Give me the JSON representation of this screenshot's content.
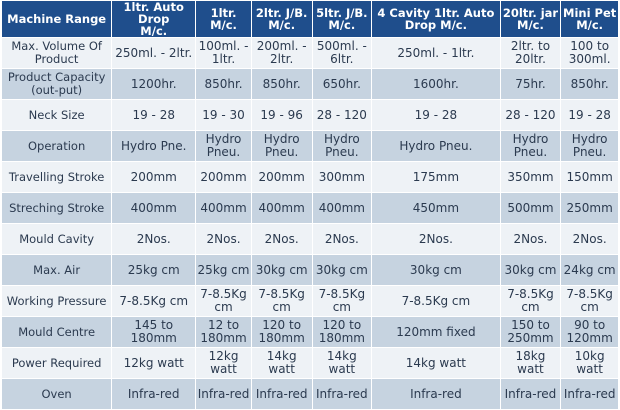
{
  "table": {
    "headers": [
      "Machine Range",
      "1ltr. Auto Drop\nM/c.",
      "1ltr. M/c.",
      "2ltr. J/B.\nM/c.",
      "5ltr. J/B.\nM/c.",
      "4 Cavity 1ltr. Auto\nDrop M/c.",
      "20ltr. jar\nM/c.",
      "Mini Pet\nM/c."
    ],
    "rows": [
      [
        "Max. Volume Of\nProduct",
        "250ml. - 2ltr.",
        "100ml. -\n1ltr.",
        "200ml. -\n2ltr.",
        "500ml. -\n6ltr.",
        "250ml. - 1ltr.",
        "2ltr. to\n20ltr.",
        "100 to\n300ml."
      ],
      [
        "Product Capacity\n(out-put)",
        "1200hr.",
        "850hr.",
        "850hr.",
        "650hr.",
        "1600hr.",
        "75hr.",
        "850hr."
      ],
      [
        "Neck Size",
        "19 - 28",
        "19 - 30",
        "19 - 96",
        "28 - 120",
        "19 - 28",
        "28 - 120",
        "19 - 28"
      ],
      [
        "Operation",
        "Hydro Pne.",
        "Hydro\nPneu.",
        "Hydro\nPneu.",
        "Hydro\nPneu.",
        "Hydro Pneu.",
        "Hydro\nPneu.",
        "Hydro\nPneu."
      ],
      [
        "Travelling Stroke",
        "200mm",
        "200mm",
        "200mm",
        "300mm",
        "175mm",
        "350mm",
        "150mm"
      ],
      [
        "Streching Stroke",
        "400mm",
        "400mm",
        "400mm",
        "400mm",
        "450mm",
        "500mm",
        "250mm"
      ],
      [
        "Mould Cavity",
        "2Nos.",
        "2Nos.",
        "2Nos.",
        "2Nos.",
        "2Nos.",
        "2Nos.",
        "2Nos."
      ],
      [
        "Max. Air",
        "25kg cm",
        "25kg cm",
        "30kg cm",
        "30kg cm",
        "30kg cm",
        "30kg cm",
        "24kg cm"
      ],
      [
        "Working Pressure",
        "7-8.5Kg cm",
        "7-8.5Kg\ncm",
        "7-8.5Kg cm",
        "7-8.5Kg cm",
        "7-8.5Kg cm",
        "7-8.5Kg cm",
        "7-8.5Kg\ncm"
      ],
      [
        "Mould Centre",
        "145 to 180mm",
        "12 to\n180mm",
        "120 to\n180mm",
        "120 to\n180mm",
        "120mm fixed",
        "150 to\n250mm",
        "90 to\n120mm"
      ],
      [
        "Power Required",
        "12kg watt",
        "12kg watt",
        "14kg watt",
        "14kg watt",
        "14kg watt",
        "18kg watt",
        "10kg watt"
      ],
      [
        "Oven",
        "Infra-red",
        "Infra-red",
        "Infra-red",
        "Infra-red",
        "Infra-red",
        "Infra-red",
        "Infra-red"
      ]
    ]
  }
}
